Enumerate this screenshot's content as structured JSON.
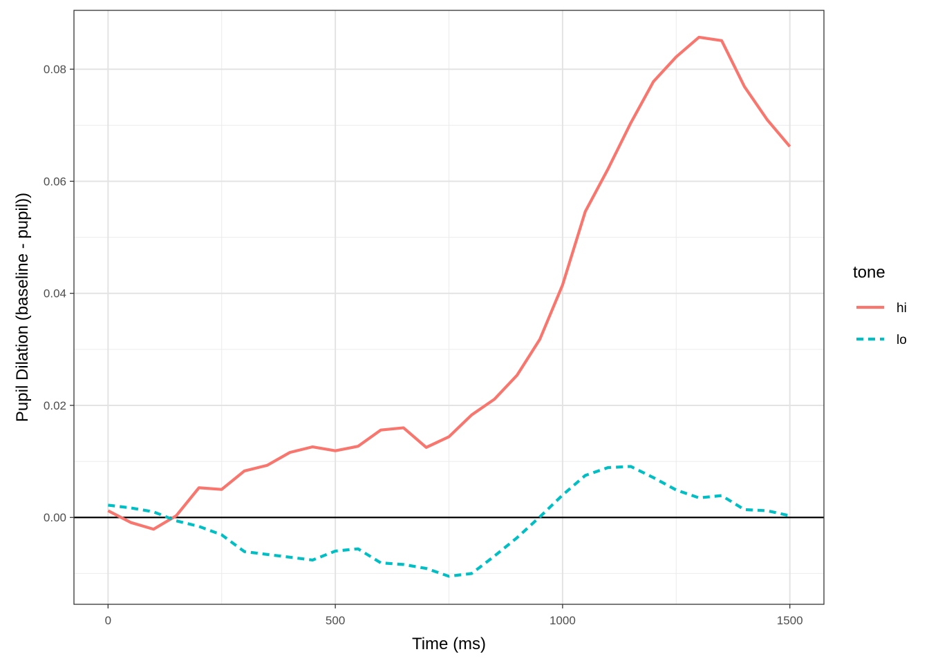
{
  "chart_data": {
    "type": "line",
    "xlabel": "Time (ms)",
    "ylabel": "Pupil Dilation (baseline - pupil))",
    "xlim": [
      -75,
      1575
    ],
    "ylim": [
      -0.0155,
      0.0905
    ],
    "x_ticks": [
      0,
      500,
      1000,
      1500
    ],
    "x_tick_labels": [
      "0",
      "500",
      "1000",
      "1500"
    ],
    "y_ticks": [
      0.0,
      0.02,
      0.04,
      0.06,
      0.08
    ],
    "y_tick_labels": [
      "0.00",
      "0.02",
      "0.04",
      "0.06",
      "0.08"
    ],
    "x_minor_ticks": [
      250,
      750,
      1250
    ],
    "y_minor_ticks": [
      -0.01,
      0.01,
      0.03,
      0.05,
      0.07
    ],
    "grid": true,
    "reference_line_y": 0,
    "legend": {
      "title": "tone",
      "position": "right"
    },
    "x": [
      0,
      50,
      100,
      150,
      200,
      250,
      300,
      350,
      400,
      450,
      500,
      550,
      600,
      650,
      700,
      750,
      800,
      850,
      900,
      950,
      1000,
      1050,
      1100,
      1150,
      1200,
      1250,
      1300,
      1350,
      1400,
      1450,
      1500
    ],
    "series": [
      {
        "name": "hi",
        "color": "#F8766D",
        "dash": "solid",
        "values": [
          0.0012,
          -0.0009,
          -0.0021,
          0.0003,
          0.0053,
          0.005,
          0.0083,
          0.0093,
          0.0116,
          0.0126,
          0.0119,
          0.0127,
          0.0156,
          0.016,
          0.0125,
          0.0144,
          0.0183,
          0.0211,
          0.0254,
          0.0318,
          0.0415,
          0.0546,
          0.0622,
          0.0704,
          0.0778,
          0.0822,
          0.0857,
          0.0851,
          0.0769,
          0.071,
          0.0662
        ]
      },
      {
        "name": "lo",
        "color": "#00BFC4",
        "dash": "dashed",
        "values": [
          0.0022,
          0.0017,
          0.001,
          -0.0006,
          -0.0016,
          -0.0031,
          -0.0061,
          -0.0066,
          -0.0071,
          -0.0076,
          -0.006,
          -0.0056,
          -0.0081,
          -0.0084,
          -0.0091,
          -0.0105,
          -0.01,
          -0.0069,
          -0.0036,
          0.0001,
          0.004,
          0.0075,
          0.0089,
          0.0091,
          0.0071,
          0.0049,
          0.0035,
          0.0039,
          0.0014,
          0.0012,
          0.0003
        ]
      }
    ]
  }
}
